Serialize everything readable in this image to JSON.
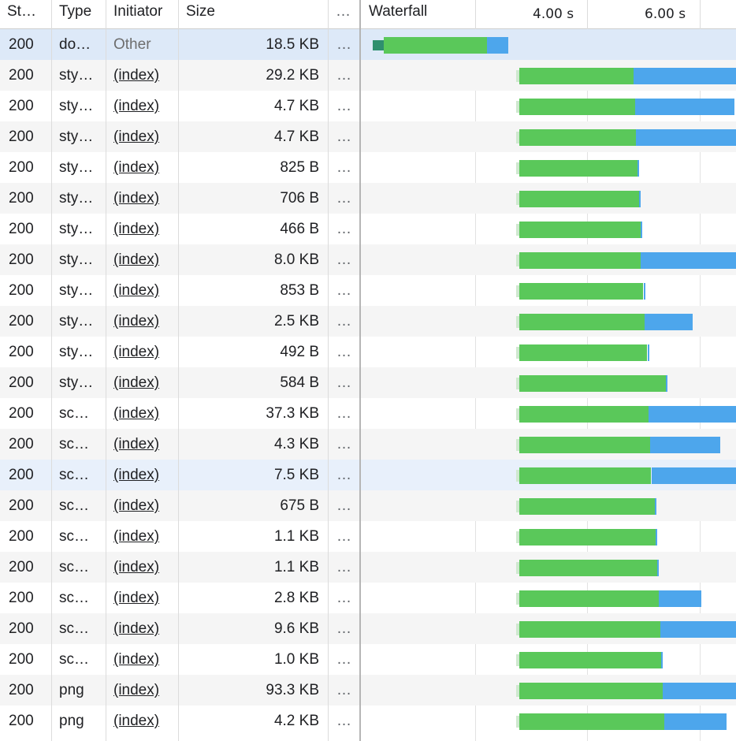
{
  "header": {
    "status": "St…",
    "type": "Type",
    "initiator": "Initiator",
    "size": "Size",
    "more": "…",
    "waterfall": "Waterfall",
    "tick_4s": "4.00 s",
    "tick_6s": "6.00 s"
  },
  "colors": {
    "waiting": "#5ac85a",
    "content_download": "#4da6ec",
    "selected_row": "#dde9f8"
  },
  "rows": [
    {
      "status": "200",
      "type": "do…",
      "initiator": "Other",
      "size": "18.5 KB",
      "more": "…",
      "wait_start": 0.1,
      "wait_end": 2.23,
      "dl_end": 2.6
    },
    {
      "status": "200",
      "type": "sty…",
      "initiator": "(index)",
      "size": "29.2 KB",
      "more": "…",
      "wait_start": 2.8,
      "wait_end": 4.82,
      "dl_end": 6.7
    },
    {
      "status": "200",
      "type": "sty…",
      "initiator": "(index)",
      "size": "4.7 KB",
      "more": "…",
      "wait_start": 2.8,
      "wait_end": 4.85,
      "dl_end": 6.62
    },
    {
      "status": "200",
      "type": "sty…",
      "initiator": "(index)",
      "size": "4.7 KB",
      "more": "…",
      "wait_start": 2.8,
      "wait_end": 4.87,
      "dl_end": 6.65
    },
    {
      "status": "200",
      "type": "sty…",
      "initiator": "(index)",
      "size": "825 B",
      "more": "…",
      "wait_start": 2.8,
      "wait_end": 4.9,
      "dl_end": 4.9
    },
    {
      "status": "200",
      "type": "sty…",
      "initiator": "(index)",
      "size": "706 B",
      "more": "…",
      "wait_start": 2.8,
      "wait_end": 4.92,
      "dl_end": 4.92
    },
    {
      "status": "200",
      "type": "sty…",
      "initiator": "(index)",
      "size": "466 B",
      "more": "…",
      "wait_start": 2.8,
      "wait_end": 4.95,
      "dl_end": 4.95
    },
    {
      "status": "200",
      "type": "sty…",
      "initiator": "(index)",
      "size": "8.0 KB",
      "more": "…",
      "wait_start": 2.8,
      "wait_end": 4.95,
      "dl_end": 6.7
    },
    {
      "status": "200",
      "type": "sty…",
      "initiator": "(index)",
      "size": "853 B",
      "more": "…",
      "wait_start": 2.8,
      "wait_end": 5.0,
      "dl_end": 5.0
    },
    {
      "status": "200",
      "type": "sty…",
      "initiator": "(index)",
      "size": "2.5 KB",
      "more": "…",
      "wait_start": 2.8,
      "wait_end": 5.02,
      "dl_end": 5.88
    },
    {
      "status": "200",
      "type": "sty…",
      "initiator": "(index)",
      "size": "492 B",
      "more": "…",
      "wait_start": 2.8,
      "wait_end": 5.07,
      "dl_end": 5.07
    },
    {
      "status": "200",
      "type": "sty…",
      "initiator": "(index)",
      "size": "584 B",
      "more": "…",
      "wait_start": 2.8,
      "wait_end": 5.4,
      "dl_end": 5.4
    },
    {
      "status": "200",
      "type": "sc…",
      "initiator": "(index)",
      "size": "37.3 KB",
      "more": "…",
      "wait_start": 2.8,
      "wait_end": 5.09,
      "dl_end": 6.7
    },
    {
      "status": "200",
      "type": "sc…",
      "initiator": "(index)",
      "size": "4.3 KB",
      "more": "…",
      "wait_start": 2.8,
      "wait_end": 5.12,
      "dl_end": 6.37
    },
    {
      "status": "200",
      "type": "sc…",
      "initiator": "(index)",
      "size": "7.5 KB",
      "more": "…",
      "wait_start": 2.8,
      "wait_end": 5.14,
      "dl_end": 6.7
    },
    {
      "status": "200",
      "type": "sc…",
      "initiator": "(index)",
      "size": "675 B",
      "more": "…",
      "wait_start": 2.8,
      "wait_end": 5.2,
      "dl_end": 5.2
    },
    {
      "status": "200",
      "type": "sc…",
      "initiator": "(index)",
      "size": "1.1 KB",
      "more": "…",
      "wait_start": 2.8,
      "wait_end": 5.22,
      "dl_end": 5.22
    },
    {
      "status": "200",
      "type": "sc…",
      "initiator": "(index)",
      "size": "1.1 KB",
      "more": "…",
      "wait_start": 2.8,
      "wait_end": 5.25,
      "dl_end": 5.25
    },
    {
      "status": "200",
      "type": "sc…",
      "initiator": "(index)",
      "size": "2.8 KB",
      "more": "…",
      "wait_start": 2.8,
      "wait_end": 5.27,
      "dl_end": 6.03
    },
    {
      "status": "200",
      "type": "sc…",
      "initiator": "(index)",
      "size": "9.6 KB",
      "more": "…",
      "wait_start": 2.8,
      "wait_end": 5.3,
      "dl_end": 6.7
    },
    {
      "status": "200",
      "type": "sc…",
      "initiator": "(index)",
      "size": "1.0 KB",
      "more": "…",
      "wait_start": 2.8,
      "wait_end": 5.32,
      "dl_end": 5.32
    },
    {
      "status": "200",
      "type": "png",
      "initiator": "(index)",
      "size": "93.3 KB",
      "more": "…",
      "wait_start": 2.8,
      "wait_end": 5.34,
      "dl_end": 6.7
    },
    {
      "status": "200",
      "type": "png",
      "initiator": "(index)",
      "size": "4.2 KB",
      "more": "…",
      "wait_start": 2.8,
      "wait_end": 5.37,
      "dl_end": 6.48
    }
  ]
}
